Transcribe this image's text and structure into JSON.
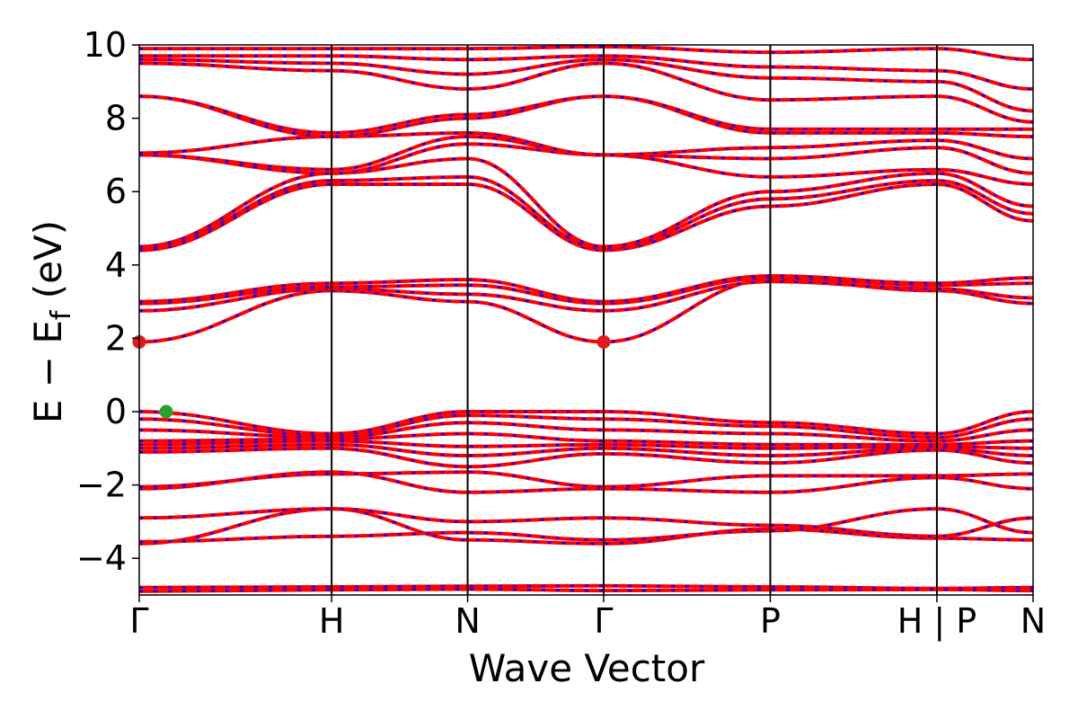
{
  "chart_data": {
    "type": "line",
    "title": "",
    "xlabel": "Wave Vector",
    "ylabel": "E − E",
    "ylabel_subscript": "f",
    "ylabel_unit": " (eV)",
    "ylim": [
      -5,
      10
    ],
    "yticks": [
      -4,
      -2,
      0,
      2,
      4,
      6,
      8,
      10
    ],
    "kpath": [
      {
        "label": "Γ",
        "pos": 0.0
      },
      {
        "label": "H",
        "pos": 1.0
      },
      {
        "label": "N",
        "pos": 1.707
      },
      {
        "label": "Γ",
        "pos": 2.414
      },
      {
        "label": "P",
        "pos": 3.28
      },
      {
        "label": "H | P",
        "pos": 4.146
      },
      {
        "label": "N",
        "pos": 4.646
      }
    ],
    "xlim": [
      0,
      4.646
    ],
    "band_colors": {
      "primary": "#ff0000",
      "secondary": "#0000ff"
    },
    "bands": [
      {
        "group": "core",
        "values": [
          -4.8,
          -4.78,
          -4.76,
          -4.75,
          -4.78,
          -4.82,
          -4.8
        ]
      },
      {
        "group": "core",
        "values": [
          -4.9,
          -4.86,
          -4.84,
          -4.88,
          -4.86,
          -4.85,
          -4.88
        ]
      },
      {
        "group": "lower",
        "values": [
          -3.6,
          -2.65,
          -3.5,
          -3.6,
          -3.2,
          -3.45,
          -3.5
        ]
      },
      {
        "group": "lower",
        "values": [
          -3.55,
          -3.4,
          -3.3,
          -3.5,
          -3.25,
          -2.65,
          -3.3
        ]
      },
      {
        "group": "lower",
        "values": [
          -2.9,
          -2.65,
          -3.0,
          -2.9,
          -3.1,
          -3.4,
          -2.9
        ]
      },
      {
        "group": "lower",
        "values": [
          -2.1,
          -1.65,
          -2.2,
          -2.1,
          -2.2,
          -1.8,
          -2.1
        ]
      },
      {
        "group": "lower",
        "values": [
          -2.05,
          -1.7,
          -1.65,
          -2.05,
          -1.75,
          -1.75,
          -1.7
        ]
      },
      {
        "group": "valence",
        "values": [
          0.0,
          -0.6,
          0.0,
          0.0,
          -0.3,
          -0.6,
          0.0
        ]
      },
      {
        "group": "valence",
        "values": [
          -0.2,
          -0.65,
          -0.1,
          -0.2,
          -0.4,
          -0.7,
          -0.2
        ]
      },
      {
        "group": "valence",
        "values": [
          -0.5,
          -0.7,
          -0.3,
          -0.5,
          -0.6,
          -0.8,
          -0.5
        ]
      },
      {
        "group": "valence",
        "values": [
          -0.8,
          -0.75,
          -0.6,
          -0.8,
          -0.9,
          -0.9,
          -0.8
        ]
      },
      {
        "group": "valence",
        "values": [
          -0.9,
          -0.8,
          -0.95,
          -0.9,
          -1.0,
          -0.95,
          -1.0
        ]
      },
      {
        "group": "valence",
        "values": [
          -1.0,
          -0.9,
          -1.2,
          -1.0,
          -1.2,
          -1.0,
          -1.2
        ]
      },
      {
        "group": "valence",
        "values": [
          -1.1,
          -1.0,
          -1.5,
          -1.15,
          -1.4,
          -1.05,
          -1.4
        ]
      },
      {
        "group": "conduction",
        "values": [
          1.9,
          3.3,
          3.0,
          1.9,
          3.6,
          3.3,
          2.95
        ]
      },
      {
        "group": "conduction",
        "values": [
          2.75,
          3.35,
          3.2,
          2.75,
          3.55,
          3.35,
          3.1
        ]
      },
      {
        "group": "conduction",
        "values": [
          2.95,
          3.4,
          3.45,
          2.95,
          3.65,
          3.45,
          3.5
        ]
      },
      {
        "group": "conduction",
        "values": [
          3.0,
          3.5,
          3.6,
          3.0,
          3.7,
          3.5,
          3.65
        ]
      },
      {
        "group": "upper",
        "values": [
          4.4,
          6.2,
          6.2,
          4.4,
          5.6,
          6.2,
          5.2
        ]
      },
      {
        "group": "upper",
        "values": [
          4.45,
          6.3,
          6.4,
          4.45,
          5.8,
          6.3,
          5.4
        ]
      },
      {
        "group": "upper",
        "values": [
          4.5,
          6.5,
          6.9,
          4.5,
          6.0,
          6.5,
          5.6
        ]
      },
      {
        "group": "upper",
        "values": [
          7.0,
          6.5,
          7.3,
          7.0,
          6.4,
          6.6,
          6.2
        ]
      },
      {
        "group": "upper",
        "values": [
          7.0,
          6.6,
          7.5,
          7.0,
          6.9,
          7.2,
          6.5
        ]
      },
      {
        "group": "upper",
        "values": [
          7.05,
          7.5,
          7.6,
          7.0,
          7.2,
          7.4,
          6.9
        ]
      },
      {
        "group": "upper",
        "values": [
          8.6,
          7.5,
          8.0,
          8.6,
          7.6,
          7.6,
          7.5
        ]
      },
      {
        "group": "upper",
        "values": [
          8.6,
          7.6,
          8.1,
          8.6,
          7.7,
          7.7,
          7.7
        ]
      },
      {
        "group": "upper",
        "values": [
          9.5,
          9.3,
          8.8,
          9.5,
          8.5,
          8.6,
          7.9
        ]
      },
      {
        "group": "upper",
        "values": [
          9.6,
          9.5,
          9.2,
          9.6,
          9.1,
          9.0,
          8.2
        ]
      },
      {
        "group": "upper",
        "values": [
          9.7,
          9.7,
          9.6,
          9.7,
          9.4,
          9.3,
          8.8
        ]
      },
      {
        "group": "upper",
        "values": [
          9.9,
          9.9,
          9.9,
          9.95,
          9.8,
          9.9,
          9.6
        ]
      }
    ],
    "markers": [
      {
        "kind": "cbm",
        "k": 0.0,
        "e": 1.9,
        "color": "#e31a1c"
      },
      {
        "kind": "cbm",
        "k": 2.414,
        "e": 1.9,
        "color": "#e31a1c"
      },
      {
        "kind": "vbm",
        "k": 0.14,
        "e": 0.0,
        "color": "#2ca02c"
      }
    ]
  }
}
